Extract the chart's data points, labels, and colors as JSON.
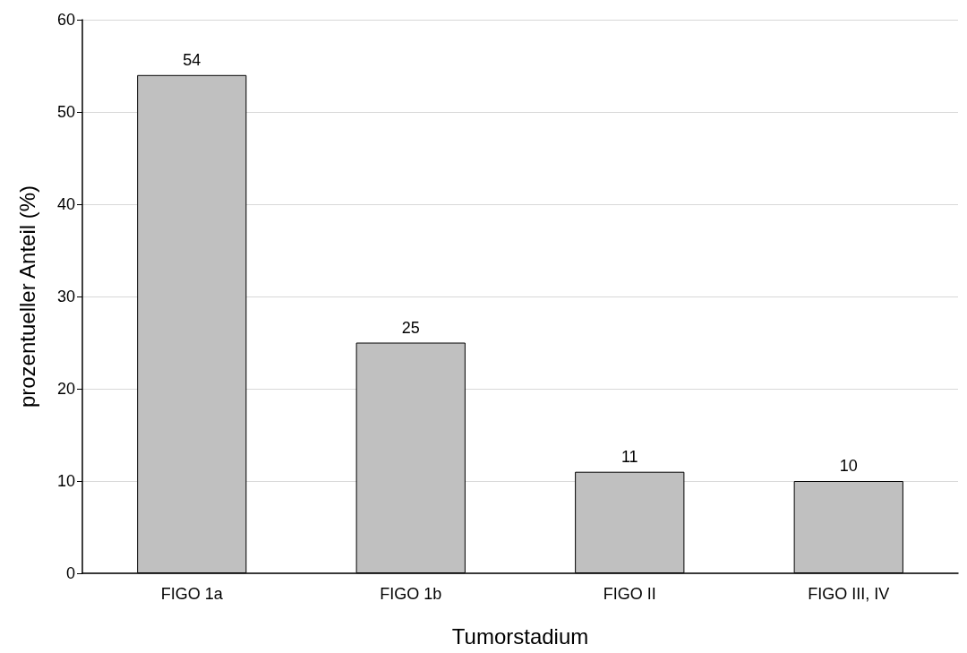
{
  "chart_data": {
    "type": "bar",
    "xlabel": "Tumorstadium",
    "ylabel": "prozentueller Anteil (%)",
    "categories": [
      "FIGO 1a",
      "FIGO 1b",
      "FIGO II",
      "FIGO III, IV"
    ],
    "values": [
      54,
      25,
      11,
      10
    ],
    "color": "#c0c0c0",
    "ylim": [
      0,
      60
    ],
    "yticks": [
      0,
      10,
      20,
      30,
      40,
      50,
      60
    ],
    "grid": "y",
    "data_labels": true
  }
}
